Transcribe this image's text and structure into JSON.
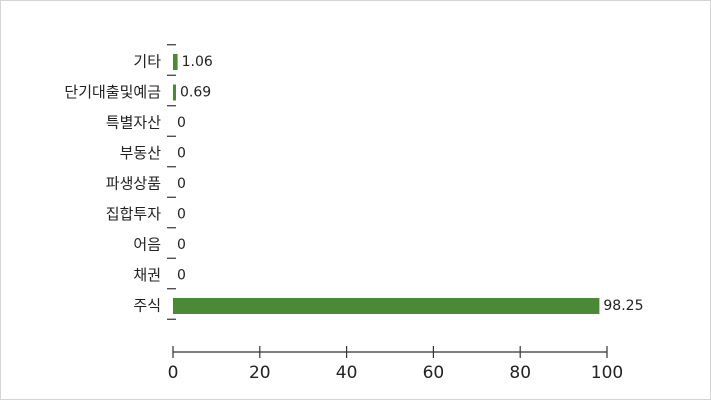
{
  "chart_data": {
    "type": "bar",
    "orientation": "horizontal",
    "categories": [
      "기타",
      "단기대출및예금",
      "특별자산",
      "부동산",
      "파생상품",
      "집합투자",
      "어음",
      "채권",
      "주식"
    ],
    "values": [
      1.06,
      0.69,
      0,
      0,
      0,
      0,
      0,
      0,
      98.25
    ],
    "value_labels": [
      "1.06",
      "0.69",
      "0",
      "0",
      "0",
      "0",
      "0",
      "0",
      "98.25"
    ],
    "xlim": [
      0,
      100
    ],
    "xticks": [
      "0",
      "20",
      "40",
      "60",
      "80",
      "100"
    ],
    "bar_color": "#4a8a36",
    "grid": false,
    "title": "",
    "xlabel": "",
    "ylabel": ""
  }
}
